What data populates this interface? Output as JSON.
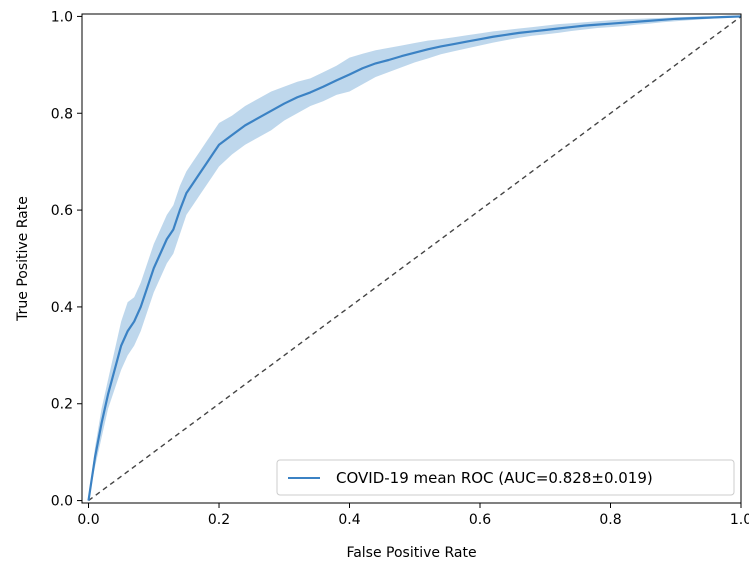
{
  "chart_data": {
    "type": "line",
    "title": "",
    "xlabel": "False Positive Rate",
    "ylabel": "True Positive Rate",
    "xlim": [
      -0.01,
      1.0
    ],
    "ylim": [
      -0.005,
      1.005
    ],
    "x_ticks": [
      "0.0",
      "0.2",
      "0.4",
      "0.6",
      "0.8",
      "1.0"
    ],
    "y_ticks": [
      "0.0",
      "0.2",
      "0.4",
      "0.6",
      "0.8",
      "1.0"
    ],
    "grid": false,
    "legend_position": "lower-right",
    "series": [
      {
        "name": "COVID-19 mean ROC (AUC=0.828±0.019)",
        "color": "#3b82c4",
        "band_color": "#a8c9e6",
        "x": [
          0.0,
          0.01,
          0.02,
          0.03,
          0.04,
          0.05,
          0.06,
          0.07,
          0.08,
          0.09,
          0.1,
          0.11,
          0.12,
          0.13,
          0.14,
          0.15,
          0.16,
          0.17,
          0.18,
          0.19,
          0.2,
          0.22,
          0.24,
          0.26,
          0.28,
          0.3,
          0.32,
          0.34,
          0.36,
          0.38,
          0.4,
          0.42,
          0.44,
          0.46,
          0.48,
          0.5,
          0.52,
          0.54,
          0.56,
          0.58,
          0.6,
          0.62,
          0.64,
          0.66,
          0.68,
          0.7,
          0.72,
          0.74,
          0.76,
          0.78,
          0.8,
          0.82,
          0.84,
          0.86,
          0.88,
          0.9,
          0.92,
          0.94,
          0.96,
          0.98,
          1.0
        ],
        "y": [
          0.0,
          0.09,
          0.16,
          0.22,
          0.27,
          0.32,
          0.35,
          0.37,
          0.4,
          0.44,
          0.48,
          0.51,
          0.54,
          0.56,
          0.6,
          0.635,
          0.655,
          0.675,
          0.695,
          0.715,
          0.735,
          0.755,
          0.775,
          0.79,
          0.805,
          0.82,
          0.833,
          0.843,
          0.855,
          0.868,
          0.88,
          0.893,
          0.903,
          0.91,
          0.918,
          0.925,
          0.932,
          0.938,
          0.943,
          0.948,
          0.953,
          0.958,
          0.962,
          0.966,
          0.969,
          0.972,
          0.975,
          0.978,
          0.981,
          0.983,
          0.985,
          0.987,
          0.989,
          0.991,
          0.993,
          0.995,
          0.996,
          0.997,
          0.998,
          0.999,
          1.0
        ],
        "upper": [
          0.0,
          0.11,
          0.19,
          0.25,
          0.31,
          0.37,
          0.41,
          0.42,
          0.45,
          0.49,
          0.53,
          0.56,
          0.59,
          0.61,
          0.65,
          0.68,
          0.7,
          0.72,
          0.74,
          0.76,
          0.78,
          0.795,
          0.815,
          0.83,
          0.845,
          0.855,
          0.865,
          0.872,
          0.885,
          0.898,
          0.915,
          0.923,
          0.93,
          0.935,
          0.94,
          0.945,
          0.95,
          0.953,
          0.957,
          0.961,
          0.965,
          0.969,
          0.972,
          0.975,
          0.978,
          0.981,
          0.984,
          0.986,
          0.988,
          0.99,
          0.992,
          0.994,
          0.995,
          0.996,
          0.997,
          0.998,
          0.999,
          1.0,
          1.0,
          1.0,
          1.0
        ],
        "lower": [
          0.0,
          0.07,
          0.13,
          0.19,
          0.23,
          0.27,
          0.3,
          0.32,
          0.35,
          0.39,
          0.43,
          0.46,
          0.49,
          0.51,
          0.55,
          0.59,
          0.61,
          0.63,
          0.65,
          0.67,
          0.69,
          0.715,
          0.735,
          0.75,
          0.765,
          0.785,
          0.8,
          0.815,
          0.825,
          0.838,
          0.845,
          0.86,
          0.875,
          0.885,
          0.895,
          0.905,
          0.913,
          0.922,
          0.928,
          0.934,
          0.94,
          0.946,
          0.951,
          0.956,
          0.96,
          0.963,
          0.966,
          0.97,
          0.973,
          0.976,
          0.978,
          0.98,
          0.983,
          0.985,
          0.988,
          0.99,
          0.992,
          0.994,
          0.996,
          0.998,
          1.0
        ]
      }
    ],
    "reference_line": {
      "x": [
        0,
        1
      ],
      "y": [
        0,
        1
      ],
      "style": "dashed",
      "color": "#444444"
    }
  }
}
